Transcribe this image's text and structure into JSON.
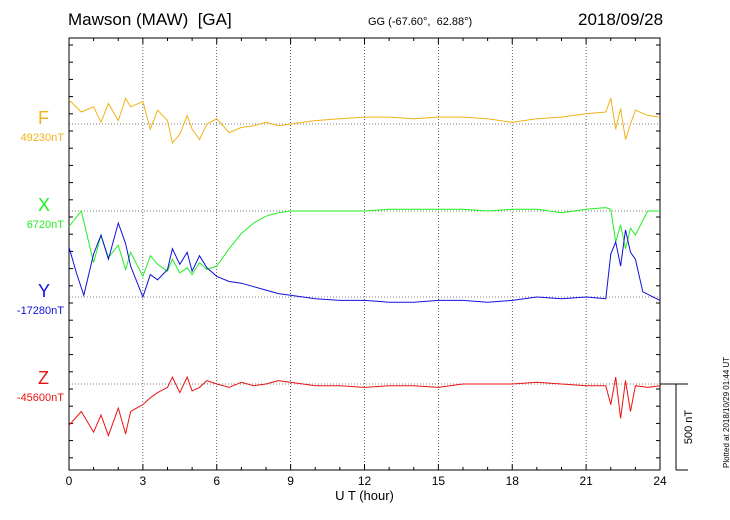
{
  "header": {
    "station": "Mawson (MAW)  [GA]",
    "coords": "GG (-67.60°,  62.88°)",
    "date": "2018/09/28",
    "plotted": "Plotted at 2018/10/29 01:44 UT"
  },
  "colors": {
    "F": "#f0b21a",
    "X": "#22ee22",
    "Y": "#1010dd",
    "Z": "#ee1111"
  },
  "chart_data": {
    "type": "line",
    "title": "Mawson (MAW)  [GA]",
    "xlabel": "U T (hour)",
    "xlim": [
      0,
      24
    ],
    "xticks": [
      0,
      3,
      6,
      9,
      12,
      15,
      18,
      21,
      24
    ],
    "scale_bar": {
      "label": "500 nT",
      "value_nT": 500
    },
    "grid": "dotted vertical at every 3 hours",
    "panels": [
      {
        "component": "F",
        "baseline_label": "49230nT",
        "baseline_nT": 49230,
        "x": [
          0,
          0.5,
          1,
          1.3,
          1.6,
          2,
          2.3,
          2.5,
          3,
          3.3,
          3.6,
          4,
          4.2,
          4.5,
          4.8,
          5,
          5.3,
          5.6,
          6,
          6.5,
          7,
          7.5,
          8,
          8.5,
          9,
          10,
          11,
          12,
          13,
          14,
          15,
          16,
          17,
          18,
          19,
          20,
          21,
          21.8,
          22,
          22.2,
          22.4,
          22.6,
          22.8,
          23,
          23.5,
          24
        ],
        "values": [
          49370,
          49300,
          49330,
          49240,
          49350,
          49250,
          49380,
          49330,
          49360,
          49200,
          49310,
          49250,
          49120,
          49170,
          49280,
          49200,
          49140,
          49230,
          49260,
          49180,
          49210,
          49220,
          49240,
          49220,
          49230,
          49250,
          49260,
          49270,
          49270,
          49260,
          49270,
          49270,
          49260,
          49240,
          49260,
          49270,
          49290,
          49300,
          49380,
          49200,
          49320,
          49140,
          49230,
          49310,
          49280,
          49270
        ]
      },
      {
        "component": "X",
        "baseline_label": "6720nT",
        "baseline_nT": 6720,
        "x": [
          0,
          0.5,
          1,
          1.3,
          1.6,
          2,
          2.3,
          2.5,
          3,
          3.3,
          3.6,
          4,
          4.2,
          4.5,
          4.8,
          5,
          5.3,
          5.6,
          6,
          6.5,
          7,
          7.5,
          8,
          8.5,
          9,
          10,
          11,
          12,
          13,
          14,
          15,
          16,
          17,
          18,
          19,
          20,
          21,
          21.8,
          22,
          22.2,
          22.4,
          22.6,
          22.8,
          23,
          23.5,
          24
        ],
        "values": [
          6630,
          6720,
          6420,
          6580,
          6450,
          6520,
          6380,
          6480,
          6340,
          6460,
          6410,
          6370,
          6440,
          6360,
          6390,
          6350,
          6420,
          6380,
          6400,
          6500,
          6590,
          6650,
          6690,
          6710,
          6720,
          6720,
          6720,
          6720,
          6730,
          6730,
          6730,
          6730,
          6720,
          6730,
          6730,
          6710,
          6730,
          6740,
          6730,
          6540,
          6640,
          6500,
          6620,
          6580,
          6720,
          6720
        ]
      },
      {
        "component": "Y",
        "baseline_label": "-17280nT",
        "baseline_nT": -17280,
        "x": [
          0,
          0.3,
          0.6,
          1,
          1.3,
          1.6,
          2,
          2.3,
          2.5,
          3,
          3.3,
          3.6,
          4,
          4.2,
          4.5,
          4.8,
          5,
          5.3,
          5.6,
          6,
          6.5,
          7,
          7.5,
          8,
          8.5,
          9,
          10,
          11,
          12,
          13,
          14,
          15,
          16,
          17,
          18,
          19,
          20,
          21,
          21.8,
          22,
          22.2,
          22.4,
          22.6,
          22.8,
          23,
          23.3,
          24
        ],
        "values": [
          -16990,
          -17140,
          -17270,
          -17030,
          -16920,
          -17060,
          -16850,
          -16970,
          -17100,
          -17280,
          -17150,
          -17180,
          -17120,
          -17000,
          -17090,
          -17020,
          -17130,
          -17040,
          -17110,
          -17160,
          -17190,
          -17200,
          -17220,
          -17240,
          -17260,
          -17270,
          -17290,
          -17300,
          -17300,
          -17310,
          -17310,
          -17300,
          -17300,
          -17310,
          -17300,
          -17280,
          -17290,
          -17280,
          -17290,
          -17030,
          -16960,
          -17100,
          -16890,
          -17020,
          -17060,
          -17250,
          -17300
        ]
      },
      {
        "component": "Z",
        "baseline_label": "-45600nT",
        "baseline_nT": -45600,
        "x": [
          0,
          0.5,
          1,
          1.3,
          1.6,
          2,
          2.3,
          2.5,
          3,
          3.3,
          3.6,
          4,
          4.2,
          4.5,
          4.8,
          5,
          5.3,
          5.6,
          6,
          6.5,
          7,
          7.5,
          8,
          8.5,
          9,
          10,
          11,
          12,
          13,
          14,
          15,
          16,
          17,
          18,
          19,
          20,
          21,
          21.8,
          22,
          22.2,
          22.4,
          22.6,
          22.8,
          23,
          23.5,
          24
        ],
        "values": [
          -45840,
          -45760,
          -45880,
          -45780,
          -45900,
          -45740,
          -45890,
          -45760,
          -45720,
          -45680,
          -45650,
          -45620,
          -45560,
          -45650,
          -45560,
          -45640,
          -45620,
          -45580,
          -45600,
          -45620,
          -45590,
          -45610,
          -45600,
          -45580,
          -45590,
          -45610,
          -45610,
          -45620,
          -45610,
          -45610,
          -45620,
          -45600,
          -45600,
          -45600,
          -45590,
          -45600,
          -45610,
          -45610,
          -45720,
          -45560,
          -45800,
          -45580,
          -45760,
          -45610,
          -45620,
          -45610
        ]
      }
    ]
  }
}
